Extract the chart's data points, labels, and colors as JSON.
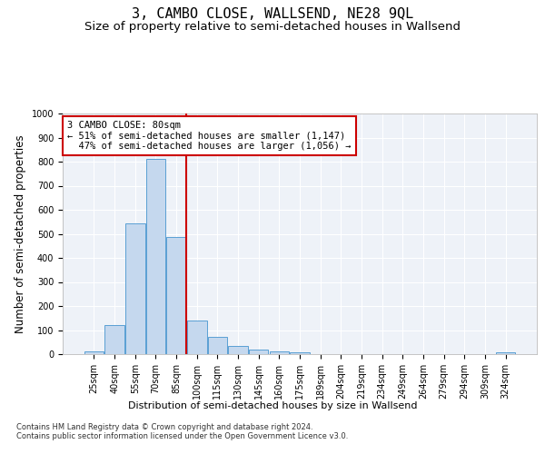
{
  "title": "3, CAMBO CLOSE, WALLSEND, NE28 9QL",
  "subtitle": "Size of property relative to semi-detached houses in Wallsend",
  "xlabel": "Distribution of semi-detached houses by size in Wallsend",
  "ylabel": "Number of semi-detached properties",
  "bar_color": "#c5d8ee",
  "bar_edge_color": "#5a9fd4",
  "categories": [
    "25sqm",
    "40sqm",
    "55sqm",
    "70sqm",
    "85sqm",
    "100sqm",
    "115sqm",
    "130sqm",
    "145sqm",
    "160sqm",
    "175sqm",
    "189sqm",
    "204sqm",
    "219sqm",
    "234sqm",
    "249sqm",
    "264sqm",
    "279sqm",
    "294sqm",
    "309sqm",
    "324sqm"
  ],
  "values": [
    12,
    122,
    545,
    810,
    485,
    140,
    72,
    35,
    20,
    12,
    8,
    0,
    0,
    0,
    0,
    0,
    0,
    0,
    0,
    0,
    8
  ],
  "red_line_index": 4,
  "annotation_text": "3 CAMBO CLOSE: 80sqm\n← 51% of semi-detached houses are smaller (1,147)\n  47% of semi-detached houses are larger (1,056) →",
  "ylim": [
    0,
    1000
  ],
  "yticks": [
    0,
    100,
    200,
    300,
    400,
    500,
    600,
    700,
    800,
    900,
    1000
  ],
  "footnote": "Contains HM Land Registry data © Crown copyright and database right 2024.\nContains public sector information licensed under the Open Government Licence v3.0.",
  "background_color": "#eef2f8",
  "grid_color": "#ffffff",
  "annotation_box_color": "#ffffff",
  "annotation_box_edge": "#cc0000",
  "title_fontsize": 11,
  "subtitle_fontsize": 9.5,
  "ylabel_fontsize": 8.5,
  "tick_fontsize": 7,
  "annotation_fontsize": 7.5,
  "footnote_fontsize": 6
}
